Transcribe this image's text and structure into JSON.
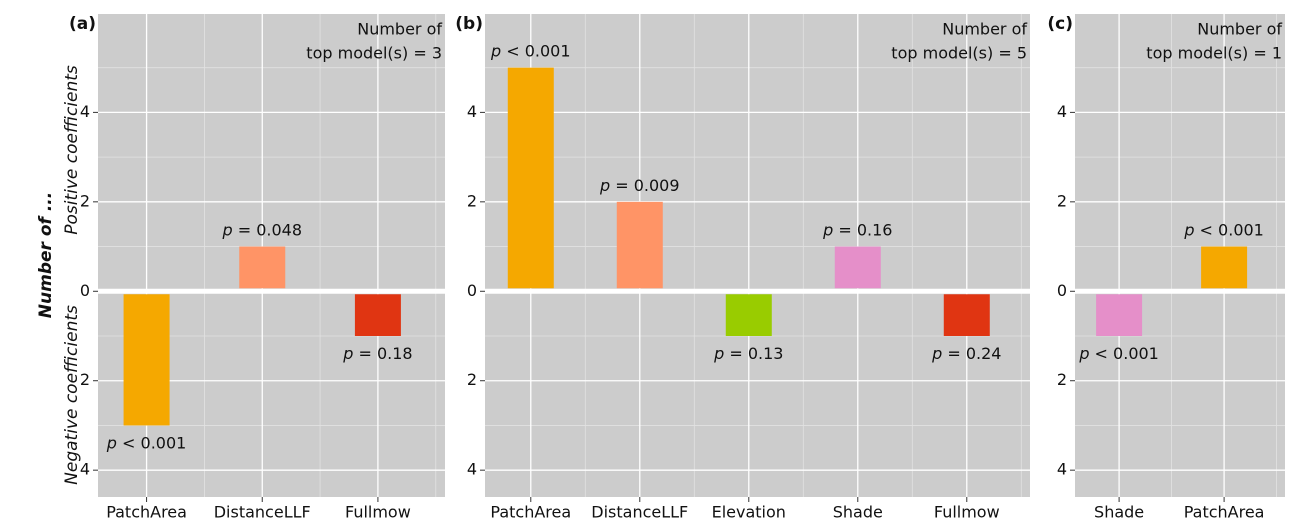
{
  "axis_labels": {
    "ylabel": "Number of ...",
    "positive": "Positive coefficients",
    "negative": "Negative coefficients"
  },
  "chart_data": [
    {
      "type": "bar",
      "panel_label": "(a)",
      "annotation": [
        "Number of",
        "top model(s) = 3"
      ],
      "categories": [
        "PatchArea",
        "DistanceLLF",
        "Fullmow"
      ],
      "values": [
        -3,
        1,
        -1
      ],
      "value_labels": [
        "p < 0.001",
        "p = 0.048",
        "p = 0.18"
      ],
      "colors": [
        "#f5a800",
        "#ff9466",
        "#e03512"
      ],
      "ylim": [
        -4.6,
        6.2
      ],
      "yticks": [
        {
          "value": -4,
          "label": "4"
        },
        {
          "value": -2,
          "label": "2"
        },
        0,
        2,
        4
      ],
      "minor_yticks": [
        -3,
        -1,
        1,
        3,
        5
      ],
      "grid": true
    },
    {
      "type": "bar",
      "panel_label": "(b)",
      "annotation": [
        "Number of",
        "top model(s) = 5"
      ],
      "categories": [
        "PatchArea",
        "DistanceLLF",
        "Elevation",
        "Shade",
        "Fullmow"
      ],
      "values": [
        5,
        2,
        -1,
        1,
        -1
      ],
      "value_labels": [
        "p < 0.001",
        "p = 0.009",
        "p = 0.13",
        "p = 0.16",
        "p = 0.24"
      ],
      "colors": [
        "#f5a800",
        "#ff9466",
        "#99cc00",
        "#e58fc9",
        "#e03512"
      ],
      "ylim": [
        -4.6,
        6.2
      ],
      "yticks": [
        {
          "value": -4,
          "label": "4"
        },
        {
          "value": -2,
          "label": "2"
        },
        0,
        2,
        4
      ],
      "minor_yticks": [
        -3,
        -1,
        1,
        3,
        5
      ],
      "grid": true
    },
    {
      "type": "bar",
      "panel_label": "(c)",
      "annotation": [
        "Number of",
        "top model(s) = 1"
      ],
      "categories": [
        "Shade",
        "PatchArea"
      ],
      "values": [
        -1,
        1
      ],
      "value_labels": [
        "p < 0.001",
        "p < 0.001"
      ],
      "colors": [
        "#e58fc9",
        "#f5a800"
      ],
      "ylim": [
        -4.6,
        6.2
      ],
      "yticks": [
        {
          "value": -4,
          "label": "4"
        },
        {
          "value": -2,
          "label": "2"
        },
        0,
        2,
        4
      ],
      "minor_yticks": [
        -3,
        -1,
        1,
        3,
        5
      ],
      "grid": true
    }
  ]
}
